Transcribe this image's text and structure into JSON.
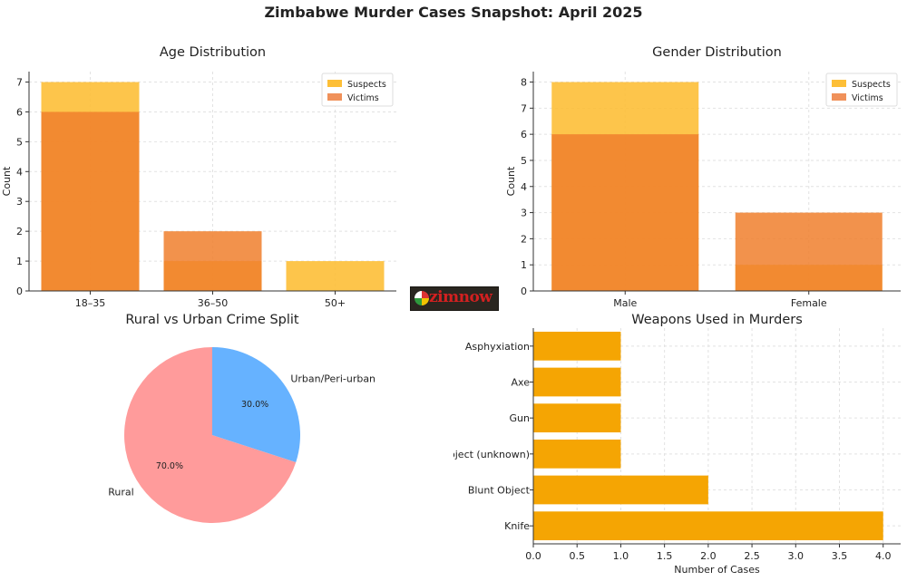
{
  "figure": {
    "title": "Zimbabwe Murder Cases Snapshot: April 2025",
    "logo_text": "zimnow"
  },
  "colors": {
    "suspects": "#fdbf37",
    "victims": "#f07f2d",
    "victims_legend": "#f0915a",
    "weapons": "#f5a503",
    "pie_rural": "#ff9b9b",
    "pie_urban": "#66b2ff"
  },
  "chart_data": [
    {
      "id": "age",
      "type": "bar",
      "title": "Age Distribution",
      "xlabel": "",
      "ylabel": "Count",
      "categories": [
        "18–35",
        "36–50",
        "50+"
      ],
      "series": [
        {
          "name": "Suspects",
          "values": [
            7,
            1,
            1
          ]
        },
        {
          "name": "Victims",
          "values": [
            6,
            2,
            0
          ]
        }
      ],
      "ylim": [
        0,
        7.35
      ],
      "yticks": [
        0,
        1,
        2,
        3,
        4,
        5,
        6,
        7
      ],
      "grid": true,
      "legend": "top-right"
    },
    {
      "id": "gender",
      "type": "bar",
      "title": "Gender Distribution",
      "xlabel": "",
      "ylabel": "Count",
      "categories": [
        "Male",
        "Female"
      ],
      "series": [
        {
          "name": "Suspects",
          "values": [
            8,
            1
          ]
        },
        {
          "name": "Victims",
          "values": [
            6,
            3
          ]
        }
      ],
      "ylim": [
        0,
        8.4
      ],
      "yticks": [
        0,
        1,
        2,
        3,
        4,
        5,
        6,
        7,
        8
      ],
      "grid": true,
      "legend": "top-right"
    },
    {
      "id": "split",
      "type": "pie",
      "title": "Rural vs Urban Crime Split",
      "labels": [
        "Rural",
        "Urban/Peri-urban"
      ],
      "values": [
        70,
        30
      ],
      "pct_labels": [
        "70.0%",
        "30.0%"
      ]
    },
    {
      "id": "weapons",
      "type": "bar",
      "orientation": "horizontal",
      "title": "Weapons Used in Murders",
      "xlabel": "Number of Cases",
      "ylabel": "",
      "categories": [
        "Knife",
        "Blunt Object",
        "Sharp Object (unknown)",
        "Gun",
        "Axe",
        "Asphyxiation"
      ],
      "values": [
        4,
        2,
        1,
        1,
        1,
        1
      ],
      "xlim": [
        0,
        4.2
      ],
      "xticks": [
        "0.0",
        "0.5",
        "1.0",
        "1.5",
        "2.0",
        "2.5",
        "3.0",
        "3.5",
        "4.0"
      ],
      "grid": true
    }
  ]
}
